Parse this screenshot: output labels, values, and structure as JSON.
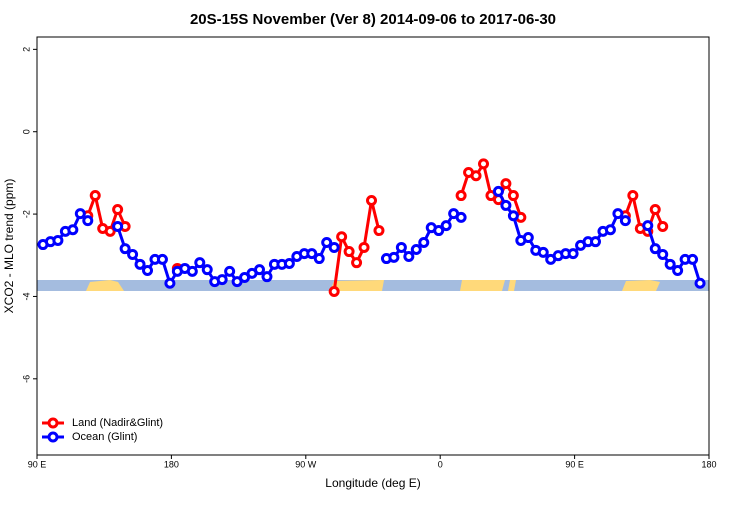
{
  "chart_data": {
    "type": "line",
    "title": "20S-15S November (Ver 8)   2014-09-06 to 2017-06-30",
    "x_label": "Longitude (deg E)",
    "y_label": "XCO2 - MLO trend (ppm)",
    "x": [
      94,
      99,
      104,
      109,
      114,
      119,
      124,
      129,
      134,
      139,
      144,
      149,
      154,
      159,
      164,
      169,
      174,
      179,
      184,
      189,
      194,
      199,
      204,
      209,
      214,
      219,
      224,
      229,
      234,
      239,
      244,
      249,
      254,
      259,
      264,
      269,
      274,
      279,
      284,
      289,
      294,
      299,
      304,
      309,
      314,
      319,
      324,
      329,
      334,
      339,
      344,
      349,
      354,
      359,
      364,
      369,
      374,
      379,
      384,
      389,
      394,
      399,
      404,
      409,
      414,
      419,
      424,
      429,
      434,
      439,
      444,
      449,
      454,
      459,
      464,
      469,
      474,
      479,
      484,
      489,
      494,
      499,
      504,
      509,
      514,
      519,
      524,
      529,
      534,
      539
    ],
    "series": [
      {
        "name": "Land (Nadir&Glint)",
        "color": "#ff0000",
        "values": [
          null,
          null,
          null,
          null,
          null,
          null,
          -2.04,
          -1.55,
          -2.35,
          -2.42,
          -1.89,
          -2.3,
          null,
          null,
          null,
          null,
          null,
          null,
          -3.32,
          null,
          null,
          null,
          null,
          null,
          null,
          null,
          null,
          null,
          null,
          null,
          null,
          null,
          null,
          null,
          null,
          null,
          null,
          null,
          null,
          -3.88,
          -2.55,
          -2.91,
          -3.18,
          -2.81,
          -1.67,
          -2.4,
          null,
          null,
          null,
          null,
          null,
          null,
          null,
          null,
          null,
          null,
          -1.55,
          -0.99,
          -1.07,
          -0.78,
          -1.55,
          -1.65,
          -1.26,
          -1.55,
          -2.08,
          null,
          null,
          null,
          null,
          null,
          null,
          null,
          null,
          null,
          null,
          null,
          null,
          null,
          -2.04,
          -1.55,
          -2.35,
          -2.42,
          -1.89,
          -2.3,
          null,
          null,
          null,
          null,
          null,
          null
        ]
      },
      {
        "name": "Ocean (Glint)",
        "color": "#0000ff",
        "values": [
          -2.74,
          -2.67,
          -2.64,
          -2.42,
          -2.38,
          -1.99,
          -2.16,
          null,
          null,
          null,
          -2.3,
          -2.84,
          -2.98,
          -3.22,
          -3.37,
          -3.1,
          -3.1,
          -3.68,
          -3.39,
          -3.32,
          -3.39,
          -3.18,
          -3.35,
          -3.64,
          -3.59,
          -3.39,
          -3.64,
          -3.54,
          -3.44,
          -3.35,
          -3.52,
          -3.22,
          -3.22,
          -3.2,
          -3.03,
          -2.96,
          -2.96,
          -3.08,
          -2.69,
          -2.81,
          null,
          null,
          null,
          null,
          null,
          null,
          -3.08,
          -3.05,
          -2.81,
          -3.03,
          -2.86,
          -2.69,
          -2.33,
          -2.4,
          -2.28,
          -1.99,
          -2.08,
          null,
          null,
          null,
          null,
          -1.45,
          -1.79,
          -2.04,
          -2.64,
          -2.57,
          -2.88,
          -2.93,
          -3.1,
          -3.01,
          -2.96,
          -2.96,
          -2.76,
          -2.67,
          -2.67,
          -2.42,
          -2.38,
          -1.99,
          -2.16,
          null,
          null,
          -2.28,
          -2.84,
          -2.98,
          -3.22,
          -3.37,
          -3.1,
          -3.1,
          -3.68,
          null
        ]
      }
    ],
    "xlim": [
      90,
      540
    ],
    "xticks": [
      {
        "value": 90,
        "label": "90 E"
      },
      180,
      {
        "value": 270,
        "label": "90 W"
      },
      {
        "value": 360,
        "label": "0"
      },
      {
        "value": 450,
        "label": "90 E"
      },
      {
        "value": 540,
        "label": "180"
      }
    ],
    "ylim": [
      -7.85,
      2.3
    ],
    "yticks": [
      -6,
      -4,
      -2,
      0,
      2
    ],
    "legend": "bottom-left"
  }
}
